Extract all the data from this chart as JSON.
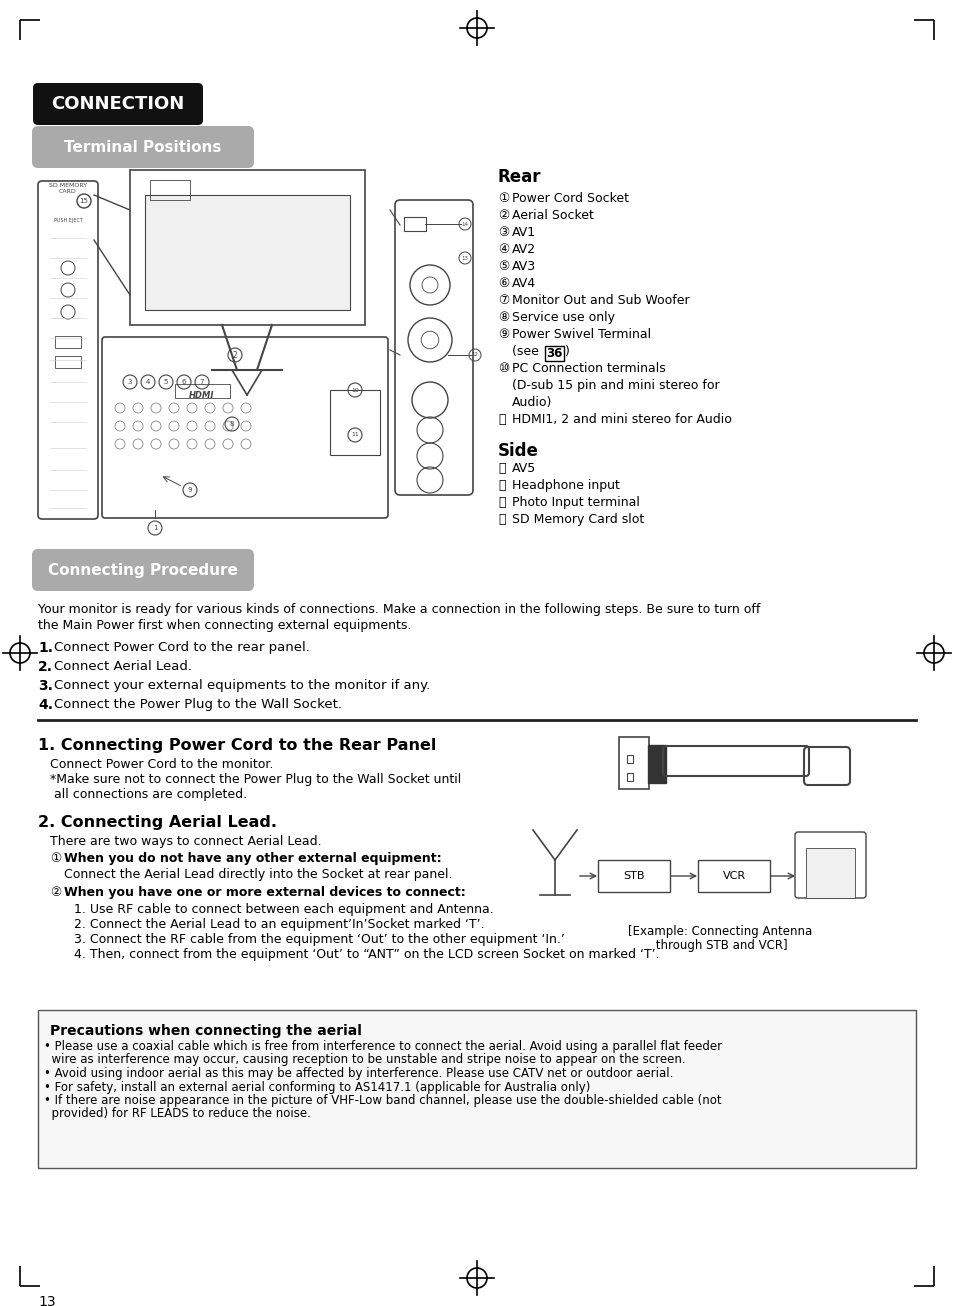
{
  "page_bg": "#ffffff",
  "page_num": "13",
  "connection_badge": "CONNECTION",
  "terminal_positions_badge": "Terminal Positions",
  "connecting_procedure_badge": "Connecting Procedure",
  "rear_title": "Rear",
  "rear_items": [
    [
      "①",
      " Power Cord Socket"
    ],
    [
      "②",
      " Aerial Socket"
    ],
    [
      "③",
      " AV1"
    ],
    [
      "④",
      " AV2"
    ],
    [
      "⑤",
      " AV3"
    ],
    [
      "⑥",
      " AV4"
    ],
    [
      "⑦",
      " Monitor Out and Sub Woofer"
    ],
    [
      "⑧",
      " Service use only"
    ],
    [
      "⑨",
      " Power Swivel Terminal"
    ],
    [
      "",
      "    (see 36)"
    ],
    [
      "⑩",
      " PC Connection terminals"
    ],
    [
      "",
      "    (D-sub 15 pin and mini stereo for"
    ],
    [
      "",
      "    Audio)"
    ],
    [
      "⑪",
      " HDMI1, 2 and mini stereo for Audio"
    ]
  ],
  "see36_row": 9,
  "side_title": "Side",
  "side_items": [
    [
      "⑫",
      " AV5"
    ],
    [
      "⑬",
      " Headphone input"
    ],
    [
      "⑭",
      " Photo Input terminal"
    ],
    [
      "⑮",
      " SD Memory Card slot"
    ]
  ],
  "procedure_intro_line1": "Your monitor is ready for various kinds of connections. Make a connection in the following steps. Be sure to turn off",
  "procedure_intro_line2": "the Main Power first when connecting external equipments.",
  "procedure_steps": [
    "Connect Power Cord to the rear panel.",
    "Connect Aerial Lead.",
    "Connect your external equipments to the monitor if any.",
    "Connect the Power Plug to the Wall Socket."
  ],
  "section1_title": "1. Connecting Power Cord to the Rear Panel",
  "section1_lines": [
    "Connect Power Cord to the monitor.",
    "*Make sure not to connect the Power Plug to the Wall Socket until",
    " all connections are completed."
  ],
  "section2_title": "2. Connecting Aerial Lead.",
  "section2_intro": "There are two ways to connect Aerial Lead.",
  "section2_item1_bold": "When you do not have any other external equipment:",
  "section2_item1_text": "Connect the Aerial Lead directly into the Socket at rear panel.",
  "section2_item2_bold": "When you have one or more external devices to connect:",
  "section2_item2_steps": [
    "1. Use RF cable to connect between each equipment and Antenna.",
    "2. Connect the Aerial Lead to an equipment’In’Socket marked ‘T’.",
    "3. Connect the RF cable from the equipment ‘Out’ to the other equipment ‘In.’",
    "4. Then, connect from the equipment ‘Out’ to “ANT” on the LCD screen Socket on marked ‘T’."
  ],
  "example_caption_line1": "[Example: Connecting Antenna",
  "example_caption_line2": " through STB and VCR]",
  "precautions_title": "Precautions when connecting the aerial",
  "precautions_items": [
    "• Please use a coaxial cable which is free from interference to connect the aerial. Avoid using a parallel flat feeder",
    "  wire as interference may occur, causing reception to be unstable and stripe noise to appear on the screen.",
    "• Avoid using indoor aerial as this may be affected by interference. Please use CATV net or outdoor aerial.",
    "• For safety, install an external aerial conforming to AS1417.1 (applicable for Australia only)",
    "• If there are noise appearance in the picture of VHF-Low band channel, please use the double-shielded cable (not",
    "  provided) for RF LEADS to reduce the noise."
  ],
  "badge_black_color": "#111111",
  "badge_gray_color": "#aaaaaa",
  "diagram_line_color": "#444444",
  "text_color": "#000000"
}
